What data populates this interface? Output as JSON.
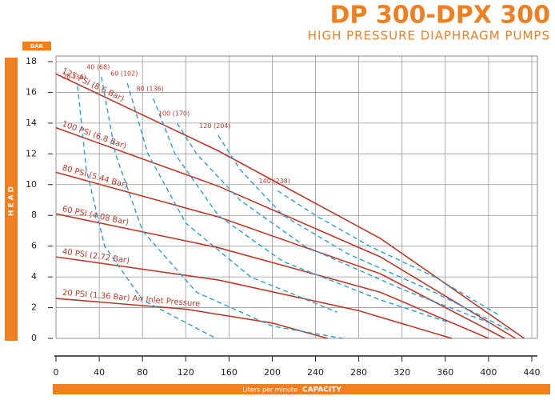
{
  "chart_data": {
    "type": "line",
    "title": "DP 300-DPX 300",
    "subtitle": "HIGH PRESSURE DIAPHRAGM PUMPS",
    "y_unit": "BAR",
    "y_label": "HEAD",
    "x_label": "Liters per minute",
    "x_label_emphasis": "CAPACITY",
    "xlim": [
      0,
      440
    ],
    "xticks": [
      0,
      40,
      80,
      120,
      160,
      200,
      240,
      280,
      320,
      360,
      400,
      440
    ],
    "ylim": [
      0,
      18
    ],
    "yticks": [
      0,
      2,
      4,
      6,
      8,
      10,
      12,
      14,
      16,
      18
    ],
    "grid": true,
    "series": [
      {
        "name": "125 PSI (8.6 Bar)",
        "color": "#c0392b",
        "style": "solid",
        "x": [
          0,
          150,
          300,
          433
        ],
        "values": [
          17.2,
          12.2,
          6.5,
          0
        ]
      },
      {
        "name": "100 PSI (6.8 Bar)",
        "color": "#c0392b",
        "style": "solid",
        "x": [
          0,
          150,
          300,
          425
        ],
        "values": [
          13.7,
          9.9,
          5.3,
          0
        ]
      },
      {
        "name": "80 PSI (5.44 Bar)",
        "color": "#c0392b",
        "style": "solid",
        "x": [
          0,
          150,
          300,
          415
        ],
        "values": [
          10.8,
          7.9,
          4.2,
          0
        ]
      },
      {
        "name": "60 PSI (4.08 Bar)",
        "color": "#c0392b",
        "style": "solid",
        "x": [
          0,
          150,
          300,
          400
        ],
        "values": [
          8.1,
          5.9,
          3,
          0
        ]
      },
      {
        "name": "40 PSI (2.72 Bar)",
        "color": "#c0392b",
        "style": "solid",
        "x": [
          0,
          150,
          280,
          366
        ],
        "values": [
          5.3,
          3.8,
          1.8,
          0
        ]
      },
      {
        "name": "20 PSI (1.36 Bar) Air Inlet Pressure",
        "color": "#c0392b",
        "style": "solid",
        "x": [
          0,
          120,
          200,
          251
        ],
        "values": [
          2.6,
          1.9,
          1,
          0
        ]
      },
      {
        "name": "20 (34)",
        "color": "#2a9fd6",
        "style": "dashed",
        "x": [
          20,
          28,
          45,
          80,
          148
        ],
        "values": [
          16.4,
          11,
          6,
          2.5,
          0
        ]
      },
      {
        "name": "40 (68)",
        "color": "#2a9fd6",
        "style": "dashed",
        "x": [
          42,
          55,
          80,
          130,
          200,
          265
        ],
        "values": [
          17,
          12,
          7,
          3,
          0.8,
          0
        ]
      },
      {
        "name": "60 (102)",
        "color": "#2a9fd6",
        "style": "dashed",
        "x": [
          66,
          85,
          120,
          180,
          260
        ],
        "values": [
          16.6,
          12,
          7.5,
          4,
          1.7
        ]
      },
      {
        "name": "80 (136)",
        "color": "#2a9fd6",
        "style": "dashed",
        "x": [
          90,
          110,
          150,
          210,
          300,
          365
        ],
        "values": [
          15.6,
          12,
          8,
          5,
          2.5,
          1
        ]
      },
      {
        "name": "100 (170)",
        "color": "#2a9fd6",
        "style": "dashed",
        "x": [
          112,
          130,
          170,
          230,
          320,
          405
        ],
        "values": [
          14,
          12,
          9,
          6,
          3.2,
          0.9
        ]
      },
      {
        "name": "120 (204)",
        "color": "#2a9fd6",
        "style": "dashed",
        "x": [
          150,
          170,
          210,
          270,
          350,
          420
        ],
        "values": [
          13.2,
          11,
          8,
          5.5,
          3,
          0.5
        ]
      },
      {
        "name": "140 (238)",
        "color": "#2a9fd6",
        "style": "dashed",
        "x": [
          205,
          240,
          290,
          350,
          410
        ],
        "values": [
          9.6,
          8,
          6,
          4,
          1.5
        ]
      }
    ]
  }
}
